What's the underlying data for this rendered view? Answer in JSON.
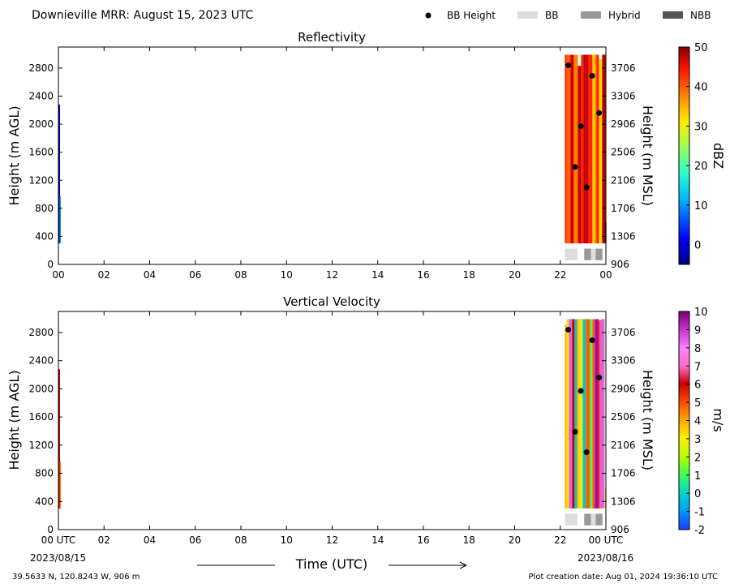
{
  "header": {
    "title": "Downieville MRR:  August 15, 2023 UTC",
    "legend": [
      {
        "label": "BB Height",
        "kind": "dot",
        "color": "#000000"
      },
      {
        "label": "BB",
        "kind": "box",
        "color": "#dddddd"
      },
      {
        "label": "Hybrid",
        "kind": "box",
        "color": "#999999"
      },
      {
        "label": "NBB",
        "kind": "box",
        "color": "#555555"
      }
    ]
  },
  "footer": {
    "xlabel": "Time (UTC)",
    "start_date": "2023/08/15",
    "end_date": "2023/08/16",
    "location": "39.5633 N, 120.8243 W, 906 m",
    "creation": "Plot creation date: Aug 01, 2024 19:36:10 UTC"
  },
  "chart_data": [
    {
      "type": "heatmap",
      "title": "Reflectivity",
      "ylabel": "Height (m AGL)",
      "ylabel_right": "Height (m MSL)",
      "colorbar_label": "dBZ",
      "colorbar_range": [
        -5,
        50
      ],
      "colorbar_ticks": [
        "0",
        "10",
        "20",
        "30",
        "40",
        "50"
      ],
      "x_ticks": [
        "00",
        "02",
        "04",
        "06",
        "08",
        "10",
        "12",
        "14",
        "16",
        "18",
        "20",
        "22",
        "00"
      ],
      "y_ticks": [
        "0",
        "400",
        "800",
        "1200",
        "1600",
        "2000",
        "2400",
        "2800"
      ],
      "y_ticks_right": [
        "906",
        "1306",
        "1706",
        "2106",
        "2506",
        "2906",
        "3306",
        "3706"
      ],
      "xlim": [
        0,
        24
      ],
      "ylim": [
        0,
        3100
      ],
      "bb_height_points": [
        {
          "hour": 22.35,
          "height": 2840
        },
        {
          "hour": 22.65,
          "height": 1390
        },
        {
          "hour": 22.9,
          "height": 1970
        },
        {
          "hour": 23.15,
          "height": 1100
        },
        {
          "hour": 23.4,
          "height": 2690
        },
        {
          "hour": 23.7,
          "height": 2160
        }
      ],
      "bb_type_blocks": [
        {
          "start_hour": 22.2,
          "end_hour": 22.75,
          "type": "BB"
        },
        {
          "start_hour": 23.05,
          "end_hour": 23.35,
          "type": "Hybrid"
        },
        {
          "start_hour": 23.35,
          "end_hour": 23.55,
          "type": "BB"
        },
        {
          "start_hour": 23.55,
          "end_hour": 23.85,
          "type": "Hybrid"
        }
      ]
    },
    {
      "type": "heatmap",
      "title": "Vertical Velocity",
      "ylabel": "Height (m AGL)",
      "ylabel_right": "Height (m MSL)",
      "colorbar_label": "m/s",
      "colorbar_range": [
        -2,
        10
      ],
      "colorbar_ticks": [
        "-2",
        "-1",
        "0",
        "1",
        "2",
        "3",
        "4",
        "5",
        "6",
        "7",
        "8",
        "9",
        "10"
      ],
      "x_ticks": [
        "00 UTC",
        "02",
        "04",
        "06",
        "08",
        "10",
        "12",
        "14",
        "16",
        "18",
        "20",
        "22",
        "00 UTC"
      ],
      "y_ticks": [
        "0",
        "400",
        "800",
        "1200",
        "1600",
        "2000",
        "2400",
        "2800"
      ],
      "y_ticks_right": [
        "906",
        "1306",
        "1706",
        "2106",
        "2506",
        "2906",
        "3306",
        "3706"
      ],
      "xlim": [
        0,
        24
      ],
      "ylim": [
        0,
        3100
      ],
      "bb_height_points": [
        {
          "hour": 22.35,
          "height": 2840
        },
        {
          "hour": 22.65,
          "height": 1390
        },
        {
          "hour": 22.9,
          "height": 1970
        },
        {
          "hour": 23.15,
          "height": 1100
        },
        {
          "hour": 23.4,
          "height": 2690
        },
        {
          "hour": 23.7,
          "height": 2160
        }
      ],
      "bb_type_blocks": [
        {
          "start_hour": 22.2,
          "end_hour": 22.75,
          "type": "BB"
        },
        {
          "start_hour": 23.05,
          "end_hour": 23.35,
          "type": "Hybrid"
        },
        {
          "start_hour": 23.35,
          "end_hour": 23.55,
          "type": "BB"
        },
        {
          "start_hour": 23.55,
          "end_hour": 23.85,
          "type": "Hybrid"
        }
      ]
    }
  ]
}
